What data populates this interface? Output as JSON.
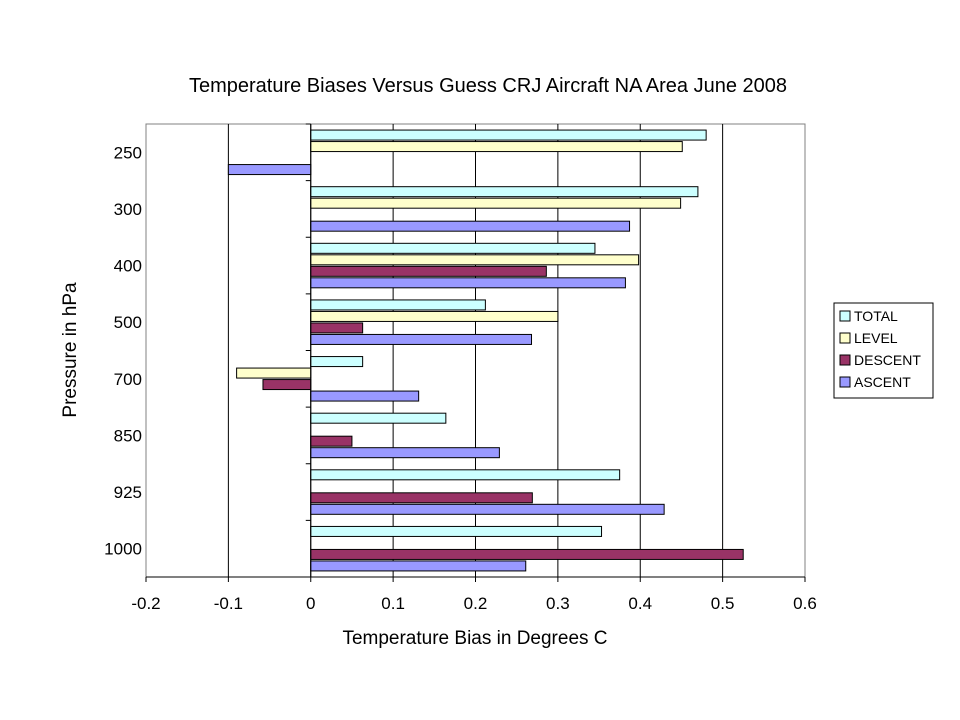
{
  "chart_data": {
    "type": "bar",
    "orientation": "horizontal",
    "title": "Temperature Biases Versus Guess CRJ Aircraft NA Area June 2008",
    "xlabel": "Temperature Bias in Degrees C",
    "ylabel": "Pressure in hPa",
    "xlim": [
      -0.2,
      0.6
    ],
    "xticks": [
      "-0.2",
      "-0.1",
      "0",
      "0.1",
      "0.2",
      "0.3",
      "0.4",
      "0.5",
      "0.6"
    ],
    "xtick_values": [
      -0.2,
      -0.1,
      0,
      0.1,
      0.2,
      0.3,
      0.4,
      0.5,
      0.6
    ],
    "categories": [
      "250",
      "300",
      "400",
      "500",
      "700",
      "850",
      "925",
      "1000"
    ],
    "grid": "vertical-major",
    "legend_position": "right",
    "series": [
      {
        "name": "TOTAL",
        "color": "#CCFFFF",
        "values": [
          0.48,
          0.47,
          0.345,
          0.212,
          0.063,
          0.164,
          0.375,
          0.353
        ]
      },
      {
        "name": "LEVEL",
        "color": "#FFFFCC",
        "values": [
          0.451,
          0.449,
          0.398,
          0.3,
          -0.09,
          0,
          0,
          0
        ]
      },
      {
        "name": "DESCENT",
        "color": "#993366",
        "values": [
          0,
          0,
          0.286,
          0.063,
          -0.058,
          0.05,
          0.269,
          0.525
        ]
      },
      {
        "name": "ASCENT",
        "color": "#9999FF",
        "values": [
          -0.1,
          0.387,
          0.382,
          0.268,
          0.131,
          0.229,
          0.429,
          0.261
        ]
      }
    ]
  }
}
